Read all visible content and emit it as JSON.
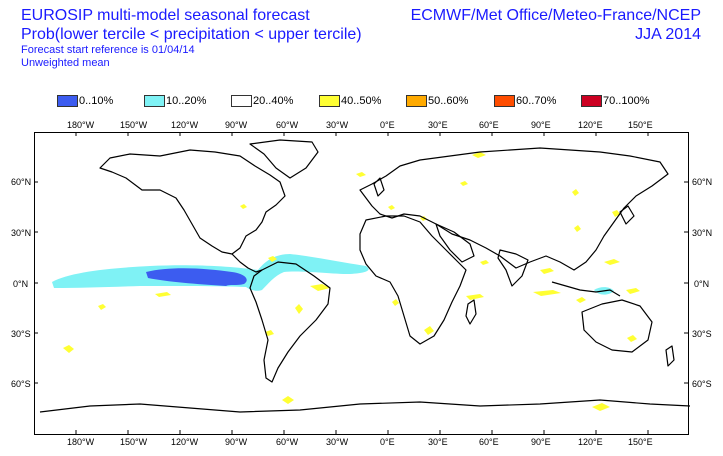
{
  "header": {
    "title_line1": "EUROSIP multi-model seasonal forecast",
    "title_line2": "Prob(lower tercile < precipitation < upper tercile)",
    "title_line3": "Forecast start reference is 01/04/14",
    "title_line4": "Unweighted mean",
    "provider": "ECMWF/Met Office/Meteo-France/NCEP",
    "season": "JJA 2014"
  },
  "legend": [
    {
      "label": "0..10%",
      "color": "#3c5cf0"
    },
    {
      "label": "10..20%",
      "color": "#7ff2f5"
    },
    {
      "label": "20..40%",
      "color": "#ffffff"
    },
    {
      "label": "40..50%",
      "color": "#ffff33"
    },
    {
      "label": "50..60%",
      "color": "#ffaa00"
    },
    {
      "label": "60..70%",
      "color": "#ff4d00"
    },
    {
      "label": "70..100%",
      "color": "#cc0022"
    }
  ],
  "axes": {
    "lon_labels": [
      "180°W",
      "150°W",
      "120°W",
      "90°W",
      "60°W",
      "30°W",
      "0°E",
      "30°E",
      "60°E",
      "90°E",
      "120°E",
      "150°E"
    ],
    "lat_labels": [
      "60°N",
      "30°N",
      "0°N",
      "30°S",
      "60°S"
    ]
  },
  "colors": {
    "title_text": "#1a1aff",
    "coastline": "#000000",
    "blue": "#3c5cf0",
    "cyan": "#7ff2f5",
    "yellow": "#ffff33"
  },
  "map": {
    "projection": "equirectangular",
    "lon_range": [
      -200,
      160
    ],
    "lat_range": [
      -80,
      80
    ]
  }
}
